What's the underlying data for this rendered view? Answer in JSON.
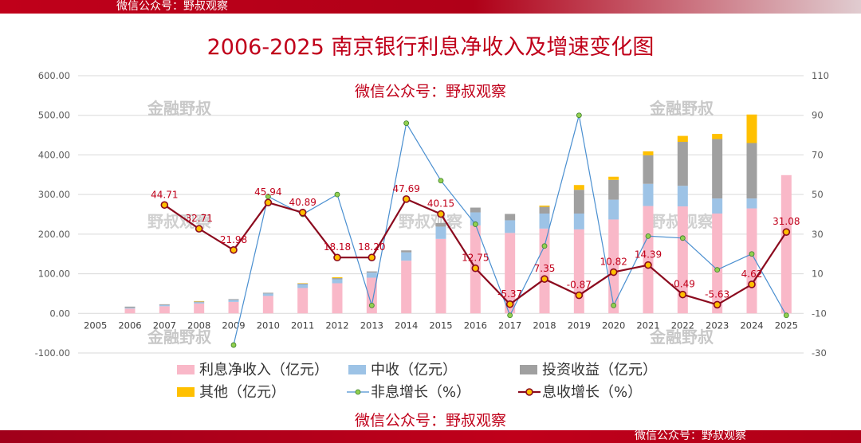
{
  "watermark_top": "微信公众号：野叔观察",
  "watermark_bottom": "微信公众号：野叔观察",
  "watermarks_mid": [
    "微信公众号：野叔观察",
    "金融野叔",
    "野叔观察"
  ],
  "chart_data": {
    "type": "bar",
    "title": "2006-2025 南京银行利息净收入及增速变化图",
    "categories": [
      "2005",
      "2006",
      "2007",
      "2008",
      "2009",
      "2010",
      "2011",
      "2012",
      "2013",
      "2014",
      "2015",
      "2016",
      "2017",
      "2018",
      "2019",
      "2020",
      "2021",
      "2022",
      "2023",
      "2024",
      "2025"
    ],
    "y_left": {
      "ylim": [
        -100,
        600
      ],
      "ticks": [
        "-100.00",
        "0.00",
        "100.00",
        "200.00",
        "300.00",
        "400.00",
        "500.00",
        "600.00"
      ]
    },
    "y_right": {
      "ylim": [
        -30,
        110
      ],
      "ticks": [
        "-30",
        "-10",
        "10",
        "30",
        "50",
        "70",
        "90",
        "110"
      ]
    },
    "stacked_series": [
      {
        "name": "利息净收入（亿元）",
        "color": "#f9b8c8",
        "values": [
          null,
          12,
          18,
          25,
          29,
          44,
          64,
          76,
          90,
          133,
          188,
          222,
          203,
          214,
          212,
          237,
          271,
          270,
          252,
          265,
          349
        ]
      },
      {
        "name": "中收（亿元）",
        "color": "#9dc3e6",
        "values": [
          null,
          2,
          3,
          3,
          5,
          6,
          9,
          10,
          13,
          21,
          31,
          33,
          32,
          38,
          40,
          50,
          56,
          52,
          38,
          25,
          0
        ]
      },
      {
        "name": "投资收益（亿元）",
        "color": "#a0a0a0",
        "values": [
          null,
          3,
          2,
          2,
          2,
          2,
          2,
          3,
          3,
          5,
          9,
          12,
          16,
          17,
          60,
          50,
          72,
          111,
          150,
          140,
          0
        ]
      },
      {
        "name": "其他（亿元）",
        "color": "#ffc000",
        "values": [
          null,
          0,
          0,
          1,
          0,
          0,
          1,
          2,
          0,
          0,
          0,
          0,
          0,
          3,
          12,
          8,
          10,
          15,
          13,
          72,
          0
        ]
      }
    ],
    "line_series": [
      {
        "name": "非息增长（%）",
        "color": "#4a8fd0",
        "marker": "#92d050",
        "values": [
          null,
          null,
          null,
          null,
          -26,
          49,
          40,
          50,
          -6,
          86,
          57,
          35,
          -11,
          24,
          90,
          -6,
          29,
          28,
          12,
          20,
          -11
        ],
        "labels": [
          null,
          null,
          null,
          null,
          "",
          "",
          "",
          "",
          "",
          "",
          "",
          "",
          "",
          "",
          "",
          "",
          "",
          "",
          "",
          "",
          ""
        ]
      },
      {
        "name": "息收增长（%）",
        "color": "#8b0a1e",
        "marker": "#ffc000",
        "values": [
          null,
          null,
          44.71,
          32.71,
          21.98,
          45.94,
          40.89,
          18.18,
          18.2,
          47.69,
          40.15,
          12.75,
          -5.37,
          7.35,
          -0.87,
          10.82,
          14.39,
          -0.49,
          -5.63,
          4.62,
          31.08
        ],
        "labels": [
          null,
          null,
          "44.71",
          "32.71",
          "21.98",
          "45.94",
          "40.89",
          "18.18",
          "18.20",
          "47.69",
          "40.15",
          "12.75",
          "-5.37",
          "7.35",
          "-0.87",
          "10.82",
          "14.39",
          "-0.49",
          "-5.63",
          "4.62",
          "31.08"
        ]
      }
    ],
    "legend": {
      "placement": "bottom"
    }
  }
}
